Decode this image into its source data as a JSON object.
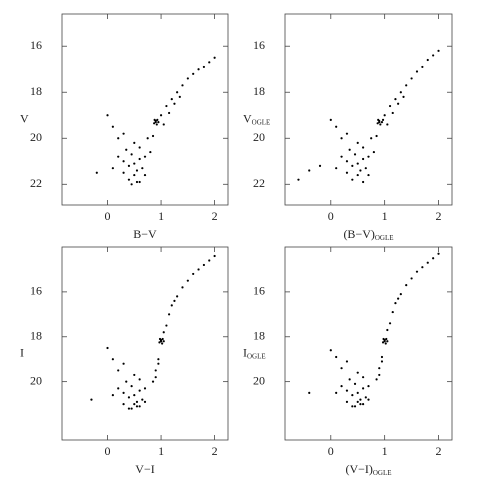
{
  "chart_data": [
    {
      "type": "scatter",
      "xlabel": {
        "text": "B−V"
      },
      "ylabel": {
        "text": "V"
      },
      "xlim": [
        -0.85,
        2.25
      ],
      "ylim": [
        22.9,
        14.6
      ],
      "xticks": [
        0,
        1,
        2
      ],
      "yticks": [
        16,
        18,
        20,
        22
      ],
      "color": "#000000",
      "x": [
        0.3,
        0.4,
        0.5,
        0.6,
        0.45,
        0.55,
        0.35,
        0.65,
        0.5,
        0.4,
        0.6,
        0.7,
        0.2,
        0.1,
        0.0,
        0.3,
        0.5,
        0.8,
        0.75,
        0.85,
        0.9,
        0.88,
        0.92,
        0.95,
        0.87,
        0.9,
        0.93,
        1.0,
        1.1,
        1.2,
        1.3,
        1.4,
        1.5,
        1.6,
        1.7,
        1.8,
        1.05,
        1.15,
        1.25,
        1.35,
        0.2,
        0.3,
        0.6,
        0.7,
        0.45,
        0.55,
        -0.2,
        0.1,
        1.9,
        2.0
      ],
      "y": [
        21.0,
        21.2,
        21.1,
        20.9,
        20.7,
        21.4,
        20.5,
        21.3,
        21.6,
        21.8,
        20.4,
        20.8,
        20.0,
        19.5,
        19.0,
        19.8,
        20.2,
        20.6,
        20.0,
        19.9,
        19.3,
        19.2,
        19.4,
        19.3,
        19.35,
        19.25,
        19.2,
        19.0,
        18.6,
        18.3,
        18.0,
        17.7,
        17.4,
        17.2,
        17.0,
        16.9,
        19.4,
        18.9,
        18.5,
        18.2,
        20.8,
        21.5,
        21.9,
        21.6,
        22.0,
        21.9,
        21.5,
        21.3,
        16.7,
        16.5
      ]
    },
    {
      "type": "scatter",
      "xlabel": {
        "text": "(B−V)",
        "sub": "OGLE"
      },
      "ylabel": {
        "text": "V",
        "sub": "OGLE"
      },
      "xlim": [
        -0.85,
        2.25
      ],
      "ylim": [
        22.9,
        14.6
      ],
      "xticks": [
        0,
        1,
        2
      ],
      "yticks": [
        16,
        18,
        20,
        22
      ],
      "color": "#000000",
      "x": [
        0.3,
        0.4,
        0.5,
        0.6,
        0.45,
        0.55,
        0.35,
        0.65,
        0.5,
        0.4,
        0.6,
        0.7,
        0.2,
        0.1,
        0.0,
        0.3,
        0.5,
        0.8,
        0.75,
        0.85,
        0.9,
        0.88,
        0.92,
        0.95,
        0.87,
        0.9,
        0.97,
        1.0,
        1.1,
        1.2,
        1.3,
        1.4,
        1.5,
        1.6,
        1.7,
        1.8,
        1.05,
        1.15,
        1.25,
        1.35,
        0.2,
        0.3,
        0.6,
        0.7,
        -0.4,
        -0.6,
        -0.2,
        0.1,
        1.9,
        2.0
      ],
      "y": [
        21.0,
        21.2,
        21.1,
        20.9,
        20.7,
        21.4,
        20.5,
        21.3,
        21.6,
        21.8,
        20.4,
        20.8,
        20.0,
        19.5,
        19.2,
        19.8,
        20.2,
        20.6,
        20.0,
        19.9,
        19.3,
        19.2,
        19.4,
        19.3,
        19.35,
        19.25,
        19.2,
        19.0,
        18.6,
        18.3,
        18.0,
        17.7,
        17.4,
        17.1,
        16.9,
        16.6,
        19.4,
        18.9,
        18.5,
        18.2,
        20.8,
        21.5,
        21.9,
        21.6,
        21.4,
        21.8,
        21.2,
        21.3,
        16.4,
        16.2
      ]
    },
    {
      "type": "scatter",
      "xlabel": {
        "text": "V−I"
      },
      "ylabel": {
        "text": "I"
      },
      "xlim": [
        -0.85,
        2.25
      ],
      "ylim": [
        22.6,
        14.0
      ],
      "xticks": [
        0,
        1,
        2
      ],
      "yticks": [
        16,
        18,
        20
      ],
      "color": "#000000",
      "x": [
        0.3,
        0.4,
        0.5,
        0.6,
        0.45,
        0.55,
        0.35,
        0.65,
        0.5,
        0.4,
        0.6,
        0.7,
        0.2,
        0.1,
        0.0,
        0.3,
        0.5,
        0.85,
        0.9,
        0.95,
        1.0,
        0.98,
        1.02,
        1.05,
        0.97,
        1.0,
        1.03,
        1.1,
        1.15,
        1.2,
        1.3,
        1.4,
        1.5,
        1.6,
        1.7,
        1.8,
        0.9,
        0.95,
        1.05,
        1.25,
        0.2,
        0.3,
        0.6,
        0.7,
        0.45,
        0.55,
        -0.3,
        0.1,
        1.9,
        2.0
      ],
      "y": [
        20.5,
        20.7,
        20.6,
        20.4,
        20.2,
        20.9,
        20.0,
        20.8,
        21.0,
        21.2,
        19.9,
        20.3,
        19.5,
        19.0,
        18.5,
        19.2,
        19.7,
        20.0,
        19.5,
        19.0,
        18.2,
        18.1,
        18.3,
        18.2,
        18.25,
        18.15,
        18.1,
        17.5,
        17.0,
        16.6,
        16.2,
        15.8,
        15.5,
        15.2,
        15.0,
        14.8,
        19.8,
        19.2,
        17.8,
        16.4,
        20.3,
        21.0,
        21.1,
        20.9,
        21.2,
        21.1,
        20.8,
        20.6,
        14.6,
        14.4
      ]
    },
    {
      "type": "scatter",
      "xlabel": {
        "text": "(V−I)",
        "sub": "OGLE"
      },
      "ylabel": {
        "text": "I",
        "sub": "OGLE"
      },
      "xlim": [
        -0.85,
        2.25
      ],
      "ylim": [
        22.6,
        14.0
      ],
      "xticks": [
        0,
        1,
        2
      ],
      "yticks": [
        16,
        18,
        20
      ],
      "color": "#000000",
      "x": [
        0.3,
        0.4,
        0.5,
        0.6,
        0.45,
        0.55,
        0.35,
        0.65,
        0.5,
        0.4,
        0.6,
        0.7,
        0.2,
        0.1,
        0.0,
        0.3,
        0.5,
        0.85,
        0.9,
        0.95,
        1.0,
        0.98,
        1.02,
        1.05,
        0.97,
        1.0,
        1.03,
        1.1,
        1.15,
        1.2,
        1.3,
        1.4,
        1.5,
        1.6,
        1.7,
        1.8,
        0.9,
        0.95,
        1.05,
        1.25,
        0.2,
        0.3,
        0.6,
        0.7,
        0.45,
        0.55,
        -0.4,
        0.1,
        1.9,
        2.0
      ],
      "y": [
        20.4,
        20.6,
        20.5,
        20.3,
        20.1,
        20.8,
        19.9,
        20.7,
        20.9,
        21.1,
        19.8,
        20.2,
        19.4,
        18.9,
        18.6,
        19.1,
        19.6,
        19.9,
        19.4,
        18.9,
        18.2,
        18.1,
        18.3,
        18.2,
        18.25,
        18.15,
        18.1,
        17.4,
        16.9,
        16.5,
        16.1,
        15.7,
        15.4,
        15.1,
        14.9,
        14.7,
        19.7,
        19.1,
        17.7,
        16.3,
        20.2,
        20.9,
        21.0,
        20.8,
        21.1,
        21.0,
        20.5,
        20.5,
        14.5,
        14.3
      ]
    }
  ]
}
